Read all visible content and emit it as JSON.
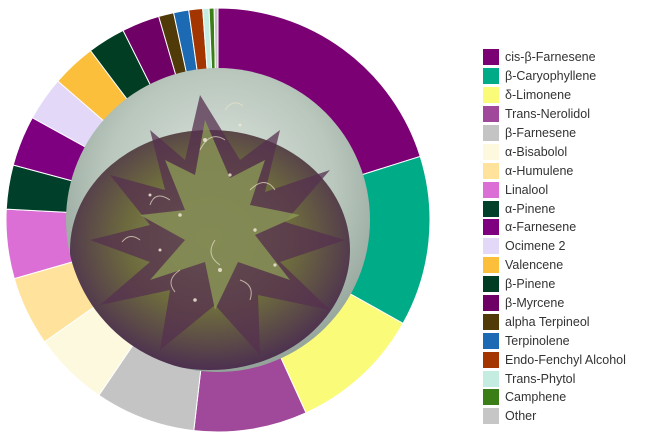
{
  "chart_data": {
    "type": "pie",
    "style": "donut",
    "legend_position": "right",
    "center_image": "cannabis bud photo",
    "slices": [
      {
        "label": "cis-β-Farnesene",
        "value": 21.0,
        "color": "#7b0074"
      },
      {
        "label": "β-Caryophyllene",
        "value": 13.5,
        "color": "#00ac87"
      },
      {
        "label": "δ-Limonene",
        "value": 10.5,
        "color": "#fbfb7a"
      },
      {
        "label": "Trans-Nerolidol",
        "value": 9.0,
        "color": "#a0489a"
      },
      {
        "label": "β-Farnesene",
        "value": 8.0,
        "color": "#c4c4c4"
      },
      {
        "label": "α-Bisabolol",
        "value": 6.0,
        "color": "#fdf9de"
      },
      {
        "label": "α-Humulene",
        "value": 5.5,
        "color": "#ffe29b"
      },
      {
        "label": "Linalool",
        "value": 5.5,
        "color": "#dc6fd6"
      },
      {
        "label": "α-Pinene",
        "value": 3.5,
        "color": "#00402b"
      },
      {
        "label": "α-Farnesene",
        "value": 4.0,
        "color": "#7e0080"
      },
      {
        "label": "Ocimene 2",
        "value": 3.5,
        "color": "#e3d8f8"
      },
      {
        "label": "Valencene",
        "value": 3.5,
        "color": "#fbbf3b"
      },
      {
        "label": "β-Pinene",
        "value": 3.0,
        "color": "#003d22"
      },
      {
        "label": "β-Myrcene",
        "value": 3.0,
        "color": "#6f0066"
      },
      {
        "label": "alpha Terpineol",
        "value": 1.2,
        "color": "#503a08"
      },
      {
        "label": "Terpinolene",
        "value": 1.2,
        "color": "#1b6ab3"
      },
      {
        "label": "Endo-Fenchyl Alcohol",
        "value": 1.1,
        "color": "#a23500"
      },
      {
        "label": "Trans-Phytol",
        "value": 0.5,
        "color": "#c5ece0"
      },
      {
        "label": "Camphene",
        "value": 0.4,
        "color": "#3b7d16"
      },
      {
        "label": "Other",
        "value": 0.3,
        "color": "#c6c6c6"
      }
    ]
  }
}
